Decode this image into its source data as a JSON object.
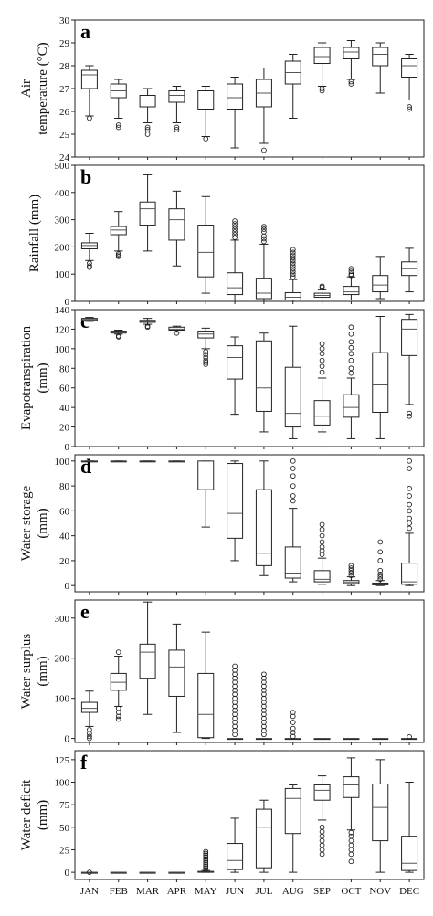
{
  "months": [
    "JAN",
    "FEB",
    "MAR",
    "APR",
    "MAY",
    "JUN",
    "JUL",
    "AUG",
    "SEP",
    "OCT",
    "NOV",
    "DEC"
  ],
  "chart_data": [
    {
      "type": "boxplot",
      "panel": "a",
      "ylabel": [
        "Air",
        "temperature (°C)"
      ],
      "ylim": [
        24,
        30
      ],
      "yticks": [
        24,
        25,
        26,
        27,
        28,
        29,
        30
      ],
      "boxes": [
        {
          "min": 25.8,
          "q1": 27.0,
          "med": 27.6,
          "q3": 27.8,
          "max": 28.0,
          "fliers": [
            25.7
          ]
        },
        {
          "min": 25.7,
          "q1": 26.6,
          "med": 26.9,
          "q3": 27.2,
          "max": 27.4,
          "fliers": [
            25.4,
            25.3
          ]
        },
        {
          "min": 25.5,
          "q1": 26.2,
          "med": 26.5,
          "q3": 26.7,
          "max": 27.0,
          "fliers": [
            25.3,
            25.2,
            25.0
          ]
        },
        {
          "min": 25.5,
          "q1": 26.4,
          "med": 26.7,
          "q3": 26.9,
          "max": 27.1,
          "fliers": [
            25.3,
            25.2
          ]
        },
        {
          "min": 24.9,
          "q1": 26.1,
          "med": 26.5,
          "q3": 26.9,
          "max": 27.1,
          "fliers": [
            24.8
          ]
        },
        {
          "min": 24.4,
          "q1": 26.1,
          "med": 26.6,
          "q3": 27.2,
          "max": 27.5,
          "fliers": []
        },
        {
          "min": 24.6,
          "q1": 26.2,
          "med": 26.8,
          "q3": 27.4,
          "max": 27.9,
          "fliers": [
            24.3
          ]
        },
        {
          "min": 25.7,
          "q1": 27.2,
          "med": 27.7,
          "q3": 28.2,
          "max": 28.5,
          "fliers": []
        },
        {
          "min": 27.1,
          "q1": 28.1,
          "med": 28.4,
          "q3": 28.8,
          "max": 29.0,
          "fliers": [
            27.0,
            26.9
          ]
        },
        {
          "min": 27.4,
          "q1": 28.3,
          "med": 28.6,
          "q3": 28.8,
          "max": 29.1,
          "fliers": [
            27.3,
            27.2
          ]
        },
        {
          "min": 26.8,
          "q1": 28.0,
          "med": 28.5,
          "q3": 28.8,
          "max": 29.0,
          "fliers": []
        },
        {
          "min": 26.5,
          "q1": 27.5,
          "med": 28.0,
          "q3": 28.3,
          "max": 28.5,
          "fliers": [
            26.2,
            26.1
          ]
        }
      ]
    },
    {
      "type": "boxplot",
      "panel": "b",
      "ylabel": [
        "Rainfall (mm)"
      ],
      "ylim": [
        0,
        500
      ],
      "yticks": [
        0,
        100,
        200,
        300,
        400,
        500
      ],
      "boxes": [
        {
          "min": 150,
          "q1": 193,
          "med": 205,
          "q3": 215,
          "max": 250,
          "fliers": [
            140,
            130,
            125
          ]
        },
        {
          "min": 185,
          "q1": 245,
          "med": 262,
          "q3": 275,
          "max": 330,
          "fliers": [
            175,
            170,
            165
          ]
        },
        {
          "min": 185,
          "q1": 280,
          "med": 340,
          "q3": 365,
          "max": 465,
          "fliers": []
        },
        {
          "min": 130,
          "q1": 225,
          "med": 300,
          "q3": 340,
          "max": 405,
          "fliers": []
        },
        {
          "min": 30,
          "q1": 90,
          "med": 180,
          "q3": 280,
          "max": 385,
          "fliers": []
        },
        {
          "min": 0,
          "q1": 25,
          "med": 50,
          "q3": 105,
          "max": 225,
          "fliers": [
            235,
            245,
            255,
            265,
            275,
            285,
            295
          ]
        },
        {
          "min": 0,
          "q1": 10,
          "med": 30,
          "q3": 85,
          "max": 210,
          "fliers": [
            220,
            230,
            240,
            255,
            265,
            275
          ]
        },
        {
          "min": 0,
          "q1": 5,
          "med": 15,
          "q3": 32,
          "max": 80,
          "fliers": [
            90,
            100,
            110,
            120,
            130,
            140,
            150,
            160,
            170,
            180,
            190
          ]
        },
        {
          "min": 5,
          "q1": 15,
          "med": 22,
          "q3": 30,
          "max": 45,
          "fliers": [
            52,
            56
          ]
        },
        {
          "min": 5,
          "q1": 25,
          "med": 35,
          "q3": 55,
          "max": 90,
          "fliers": [
            95,
            100,
            110,
            120
          ]
        },
        {
          "min": 10,
          "q1": 35,
          "med": 60,
          "q3": 95,
          "max": 165,
          "fliers": []
        },
        {
          "min": 35,
          "q1": 95,
          "med": 120,
          "q3": 145,
          "max": 195,
          "fliers": []
        }
      ]
    },
    {
      "type": "boxplot",
      "panel": "c",
      "ylabel": [
        "Evapotranspiration",
        "(mm)"
      ],
      "ylim": [
        0,
        140
      ],
      "yticks": [
        0,
        20,
        40,
        60,
        80,
        100,
        120,
        140
      ],
      "boxes": [
        {
          "min": 128,
          "q1": 129,
          "med": 130,
          "q3": 131,
          "max": 132,
          "fliers": []
        },
        {
          "min": 115,
          "q1": 116,
          "med": 117,
          "q3": 118,
          "max": 119,
          "fliers": [
            113,
            112
          ]
        },
        {
          "min": 125,
          "q1": 127,
          "med": 128,
          "q3": 129,
          "max": 131,
          "fliers": [
            123,
            122
          ]
        },
        {
          "min": 117,
          "q1": 119,
          "med": 120,
          "q3": 122,
          "max": 123,
          "fliers": [
            116
          ]
        },
        {
          "min": 100,
          "q1": 111,
          "med": 115,
          "q3": 118,
          "max": 121,
          "fliers": [
            97,
            94,
            91,
            88,
            86,
            84
          ]
        },
        {
          "min": 33,
          "q1": 69,
          "med": 91,
          "q3": 103,
          "max": 112,
          "fliers": []
        },
        {
          "min": 15,
          "q1": 36,
          "med": 60,
          "q3": 108,
          "max": 116,
          "fliers": []
        },
        {
          "min": 8,
          "q1": 20,
          "med": 34,
          "q3": 81,
          "max": 123,
          "fliers": []
        },
        {
          "min": 15,
          "q1": 22,
          "med": 31,
          "q3": 47,
          "max": 70,
          "fliers": [
            76,
            82,
            88,
            95,
            100,
            105
          ]
        },
        {
          "min": 8,
          "q1": 30,
          "med": 40,
          "q3": 53,
          "max": 70,
          "fliers": [
            75,
            80,
            88,
            95,
            101,
            107,
            115,
            122
          ]
        },
        {
          "min": 8,
          "q1": 35,
          "med": 63,
          "q3": 96,
          "max": 133,
          "fliers": []
        },
        {
          "min": 43,
          "q1": 93,
          "med": 120,
          "q3": 130,
          "max": 135,
          "fliers": [
            34,
            31
          ]
        }
      ]
    },
    {
      "type": "boxplot",
      "panel": "d",
      "ylabel": [
        "Water storage",
        "(mm)"
      ],
      "ylim": [
        -5,
        105
      ],
      "yticks": [
        0,
        20,
        40,
        60,
        80,
        100
      ],
      "boxes": [
        {
          "min": 100,
          "q1": 100,
          "med": 100,
          "q3": 100,
          "max": 100,
          "fliers": []
        },
        {
          "min": 100,
          "q1": 100,
          "med": 100,
          "q3": 100,
          "max": 100,
          "fliers": []
        },
        {
          "min": 100,
          "q1": 100,
          "med": 100,
          "q3": 100,
          "max": 100,
          "fliers": []
        },
        {
          "min": 100,
          "q1": 100,
          "med": 100,
          "q3": 100,
          "max": 100,
          "fliers": []
        },
        {
          "min": 47,
          "q1": 77,
          "med": 100,
          "q3": 100,
          "max": 100,
          "fliers": []
        },
        {
          "min": 20,
          "q1": 38,
          "med": 58,
          "q3": 98,
          "max": 100,
          "fliers": []
        },
        {
          "min": 8,
          "q1": 16,
          "med": 26,
          "q3": 77,
          "max": 100,
          "fliers": []
        },
        {
          "min": 3,
          "q1": 6,
          "med": 10,
          "q3": 31,
          "max": 62,
          "fliers": [
            68,
            72,
            80,
            88,
            94,
            100
          ]
        },
        {
          "min": 1,
          "q1": 3,
          "med": 5,
          "q3": 12,
          "max": 22,
          "fliers": [
            25,
            28,
            31,
            35,
            40,
            45,
            49
          ]
        },
        {
          "min": 0,
          "q1": 1.5,
          "med": 2.5,
          "q3": 4,
          "max": 7,
          "fliers": [
            8,
            10,
            12,
            14,
            16
          ]
        },
        {
          "min": 0,
          "q1": 0.5,
          "med": 1,
          "q3": 2,
          "max": 4,
          "fliers": [
            5,
            7,
            9,
            12,
            20,
            27,
            35
          ]
        },
        {
          "min": 0,
          "q1": 1,
          "med": 3,
          "q3": 18,
          "max": 42,
          "fliers": [
            46,
            50,
            54,
            60,
            65,
            72,
            78,
            94,
            100
          ]
        }
      ]
    },
    {
      "type": "boxplot",
      "panel": "e",
      "ylabel": [
        "Water surplus",
        "(mm)"
      ],
      "ylim": [
        -10,
        345
      ],
      "yticks": [
        0,
        100,
        200,
        300
      ],
      "boxes": [
        {
          "min": 30,
          "q1": 65,
          "med": 75,
          "q3": 90,
          "max": 118,
          "fliers": [
            22,
            12,
            5,
            0
          ]
        },
        {
          "min": 80,
          "q1": 120,
          "med": 140,
          "q3": 162,
          "max": 205,
          "fliers": [
            75,
            65,
            55,
            48,
            215
          ]
        },
        {
          "min": 60,
          "q1": 150,
          "med": 215,
          "q3": 235,
          "max": 340,
          "fliers": []
        },
        {
          "min": 15,
          "q1": 105,
          "med": 178,
          "q3": 220,
          "max": 285,
          "fliers": []
        },
        {
          "min": 0,
          "q1": 2,
          "med": 60,
          "q3": 162,
          "max": 265,
          "fliers": []
        },
        {
          "min": 0,
          "q1": 0,
          "med": 0,
          "q3": 0,
          "max": 0,
          "fliers": [
            10,
            20,
            30,
            40,
            50,
            60,
            70,
            80,
            90,
            100,
            110,
            120,
            130,
            140,
            150,
            160,
            170,
            180
          ]
        },
        {
          "min": 0,
          "q1": 0,
          "med": 0,
          "q3": 0,
          "max": 0,
          "fliers": [
            10,
            20,
            30,
            40,
            50,
            60,
            70,
            80,
            90,
            100,
            110,
            120,
            130,
            140,
            150,
            160
          ]
        },
        {
          "min": 0,
          "q1": 0,
          "med": 0,
          "q3": 0,
          "max": 0,
          "fliers": [
            5,
            15,
            25,
            40,
            55,
            65
          ]
        },
        {
          "min": 0,
          "q1": 0,
          "med": 0,
          "q3": 0,
          "max": 0,
          "fliers": []
        },
        {
          "min": 0,
          "q1": 0,
          "med": 0,
          "q3": 0,
          "max": 0,
          "fliers": []
        },
        {
          "min": 0,
          "q1": 0,
          "med": 0,
          "q3": 0,
          "max": 0,
          "fliers": []
        },
        {
          "min": 0,
          "q1": 0,
          "med": 0,
          "q3": 0,
          "max": 0,
          "fliers": [
            4
          ]
        }
      ]
    },
    {
      "type": "boxplot",
      "panel": "f",
      "ylabel": [
        "Water deficit",
        "(mm)"
      ],
      "ylim": [
        -8,
        135
      ],
      "yticks": [
        0,
        25,
        50,
        75,
        100,
        125
      ],
      "boxes": [
        {
          "min": 0,
          "q1": 0,
          "med": 0,
          "q3": 0,
          "max": 0,
          "fliers": [
            0
          ]
        },
        {
          "min": 0,
          "q1": 0,
          "med": 0,
          "q3": 0,
          "max": 0,
          "fliers": []
        },
        {
          "min": 0,
          "q1": 0,
          "med": 0,
          "q3": 0,
          "max": 0,
          "fliers": []
        },
        {
          "min": 0,
          "q1": 0,
          "med": 0,
          "q3": 0,
          "max": 0,
          "fliers": []
        },
        {
          "min": 0,
          "q1": 0,
          "med": 0,
          "q3": 1,
          "max": 2,
          "fliers": [
            3,
            5,
            7,
            9,
            11,
            13,
            15,
            17,
            19,
            21,
            23
          ]
        },
        {
          "min": 0,
          "q1": 3,
          "med": 13,
          "q3": 32,
          "max": 60,
          "fliers": []
        },
        {
          "min": 0,
          "q1": 5,
          "med": 50,
          "q3": 70,
          "max": 80,
          "fliers": []
        },
        {
          "min": 0,
          "q1": 43,
          "med": 82,
          "q3": 93,
          "max": 97,
          "fliers": []
        },
        {
          "min": 58,
          "q1": 80,
          "med": 91,
          "q3": 97,
          "max": 107,
          "fliers": [
            50,
            45,
            40,
            35,
            30,
            25,
            20
          ]
        },
        {
          "min": 47,
          "q1": 83,
          "med": 97,
          "q3": 106,
          "max": 127,
          "fliers": [
            44,
            40,
            35,
            30,
            25,
            20,
            12
          ]
        },
        {
          "min": 0,
          "q1": 35,
          "med": 72,
          "q3": 98,
          "max": 125,
          "fliers": []
        },
        {
          "min": 0,
          "q1": 2,
          "med": 10,
          "q3": 40,
          "max": 100,
          "fliers": []
        }
      ]
    }
  ]
}
